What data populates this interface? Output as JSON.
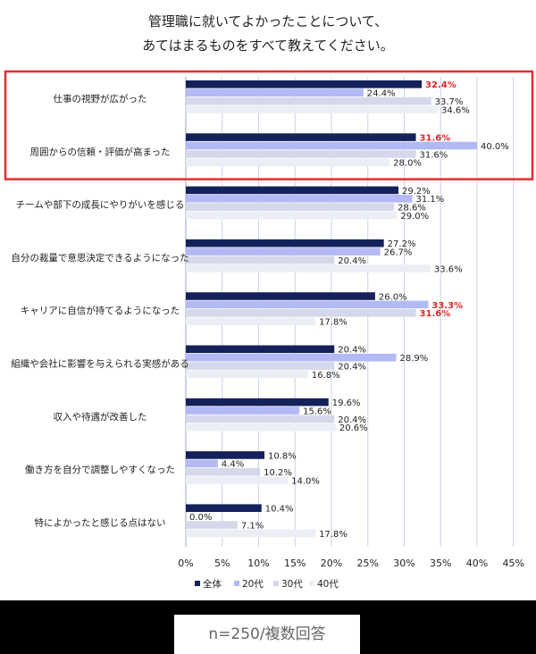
{
  "header": {
    "title_line1": "管理職に就いてよかったことについて、",
    "title_line2": "あてはまるものをすべて教えてください。"
  },
  "footer": {
    "note": "n=250/複数回答"
  },
  "colors": {
    "series": [
      "#14215a",
      "#b3b9f4",
      "#d5d8ea",
      "#eceef5"
    ],
    "highlight_box": "#e52d2d",
    "highlight_text": "#e32626",
    "grid": "#c9d4e6"
  },
  "chart_data": {
    "type": "bar",
    "orientation": "horizontal",
    "title": "管理職に就いてよかったことについて、あてはまるものをすべて教えてください。",
    "categories": [
      "仕事の視野が広がった",
      "周囲からの信頼・評価が高まった",
      "チームや部下の成長にやりがいを感じる",
      "自分の裁量で意思決定できるようになった",
      "キャリアに自信が持てるようになった",
      "組織や会社に影響を与えられる実感がある",
      "収入や待遇が改善した",
      "働き方を自分で調整しやすくなった",
      "特によかったと感じる点はない"
    ],
    "series": [
      {
        "name": "全体",
        "values": [
          32.4,
          31.6,
          29.2,
          27.2,
          26.0,
          20.4,
          19.6,
          10.8,
          10.4
        ]
      },
      {
        "name": "20代",
        "values": [
          24.4,
          40.0,
          31.1,
          26.7,
          33.3,
          28.9,
          15.6,
          4.4,
          0.0
        ]
      },
      {
        "name": "30代",
        "values": [
          33.7,
          31.6,
          28.6,
          20.4,
          31.6,
          20.4,
          20.4,
          10.2,
          7.1
        ]
      },
      {
        "name": "40代",
        "values": [
          34.6,
          28.0,
          29.0,
          33.6,
          17.8,
          16.8,
          20.6,
          14.0,
          17.8
        ]
      }
    ],
    "value_labels": [
      [
        "32.4%",
        "24.4%",
        "33.7%",
        "34.6%"
      ],
      [
        "31.6%",
        "40.0%",
        "31.6%",
        "28.0%"
      ],
      [
        "29.2%",
        "31.1%",
        "28.6%",
        "29.0%"
      ],
      [
        "27.2%",
        "26.7%",
        "20.4%",
        "33.6%"
      ],
      [
        "26.0%",
        "33.3%",
        "31.6%",
        "17.8%"
      ],
      [
        "20.4%",
        "28.9%",
        "20.4%",
        "16.8%"
      ],
      [
        "19.6%",
        "15.6%",
        "20.4%",
        "20.6%"
      ],
      [
        "10.8%",
        "4.4%",
        "10.2%",
        "14.0%"
      ],
      [
        "10.4%",
        "0.0%",
        "7.1%",
        "17.8%"
      ]
    ],
    "highlighted_labels": [
      [
        0,
        0
      ],
      [
        1,
        0
      ],
      [
        4,
        1
      ],
      [
        4,
        2
      ]
    ],
    "highlighted_categories": [
      0,
      1
    ],
    "xlim": [
      0,
      45
    ],
    "x_ticks": [
      "0%",
      "5%",
      "10%",
      "15%",
      "20%",
      "25%",
      "30%",
      "35%",
      "40%",
      "45%"
    ],
    "legend_position": "bottom",
    "grid": true
  }
}
